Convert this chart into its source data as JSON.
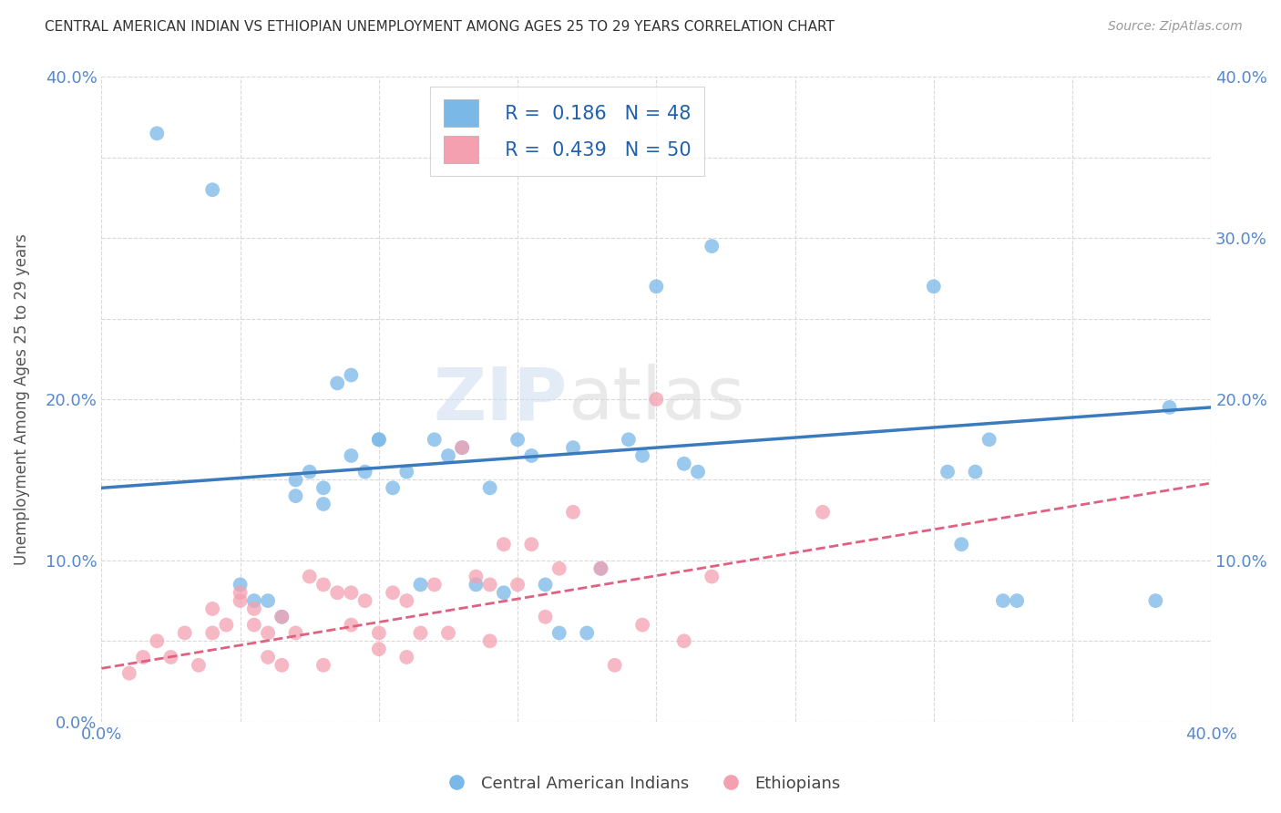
{
  "title": "CENTRAL AMERICAN INDIAN VS ETHIOPIAN UNEMPLOYMENT AMONG AGES 25 TO 29 YEARS CORRELATION CHART",
  "source": "Source: ZipAtlas.com",
  "ylabel": "Unemployment Among Ages 25 to 29 years",
  "background_color": "#ffffff",
  "blue_color": "#7ab8e8",
  "pink_color": "#f4a0b0",
  "blue_line_color": "#3a7bbf",
  "pink_line_color": "#e06080",
  "watermark_text": "ZIPatlas",
  "blue_r": 0.186,
  "blue_n": 48,
  "pink_r": 0.439,
  "pink_n": 50,
  "xlim": [
    0.0,
    0.4
  ],
  "ylim": [
    0.0,
    0.4
  ],
  "blue_points_x": [
    0.02,
    0.04,
    0.05,
    0.055,
    0.06,
    0.065,
    0.07,
    0.07,
    0.075,
    0.08,
    0.08,
    0.085,
    0.09,
    0.09,
    0.095,
    0.1,
    0.1,
    0.105,
    0.11,
    0.115,
    0.12,
    0.125,
    0.13,
    0.135,
    0.14,
    0.145,
    0.15,
    0.155,
    0.16,
    0.165,
    0.17,
    0.175,
    0.18,
    0.19,
    0.195,
    0.2,
    0.21,
    0.215,
    0.22,
    0.3,
    0.305,
    0.31,
    0.315,
    0.32,
    0.325,
    0.33,
    0.38,
    0.385
  ],
  "blue_points_y": [
    0.365,
    0.33,
    0.085,
    0.075,
    0.075,
    0.065,
    0.15,
    0.14,
    0.155,
    0.145,
    0.135,
    0.21,
    0.215,
    0.165,
    0.155,
    0.175,
    0.175,
    0.145,
    0.155,
    0.085,
    0.175,
    0.165,
    0.17,
    0.085,
    0.145,
    0.08,
    0.175,
    0.165,
    0.085,
    0.055,
    0.17,
    0.055,
    0.095,
    0.175,
    0.165,
    0.27,
    0.16,
    0.155,
    0.295,
    0.27,
    0.155,
    0.11,
    0.155,
    0.175,
    0.075,
    0.075,
    0.075,
    0.195
  ],
  "pink_points_x": [
    0.01,
    0.015,
    0.02,
    0.025,
    0.03,
    0.035,
    0.04,
    0.04,
    0.045,
    0.05,
    0.05,
    0.055,
    0.055,
    0.06,
    0.06,
    0.065,
    0.065,
    0.07,
    0.075,
    0.08,
    0.08,
    0.085,
    0.09,
    0.09,
    0.095,
    0.1,
    0.1,
    0.105,
    0.11,
    0.11,
    0.115,
    0.12,
    0.125,
    0.13,
    0.135,
    0.14,
    0.14,
    0.145,
    0.15,
    0.155,
    0.16,
    0.165,
    0.17,
    0.18,
    0.185,
    0.195,
    0.2,
    0.21,
    0.22,
    0.26
  ],
  "pink_points_y": [
    0.03,
    0.04,
    0.05,
    0.04,
    0.055,
    0.035,
    0.07,
    0.055,
    0.06,
    0.075,
    0.08,
    0.07,
    0.06,
    0.055,
    0.04,
    0.065,
    0.035,
    0.055,
    0.09,
    0.085,
    0.035,
    0.08,
    0.06,
    0.08,
    0.075,
    0.045,
    0.055,
    0.08,
    0.075,
    0.04,
    0.055,
    0.085,
    0.055,
    0.17,
    0.09,
    0.085,
    0.05,
    0.11,
    0.085,
    0.11,
    0.065,
    0.095,
    0.13,
    0.095,
    0.035,
    0.06,
    0.2,
    0.05,
    0.09,
    0.13
  ],
  "blue_line_x0": 0.0,
  "blue_line_x1": 0.4,
  "blue_line_y0": 0.145,
  "blue_line_y1": 0.195,
  "pink_line_x0": 0.0,
  "pink_line_x1": 0.4,
  "pink_line_y0": 0.033,
  "pink_line_y1": 0.148
}
